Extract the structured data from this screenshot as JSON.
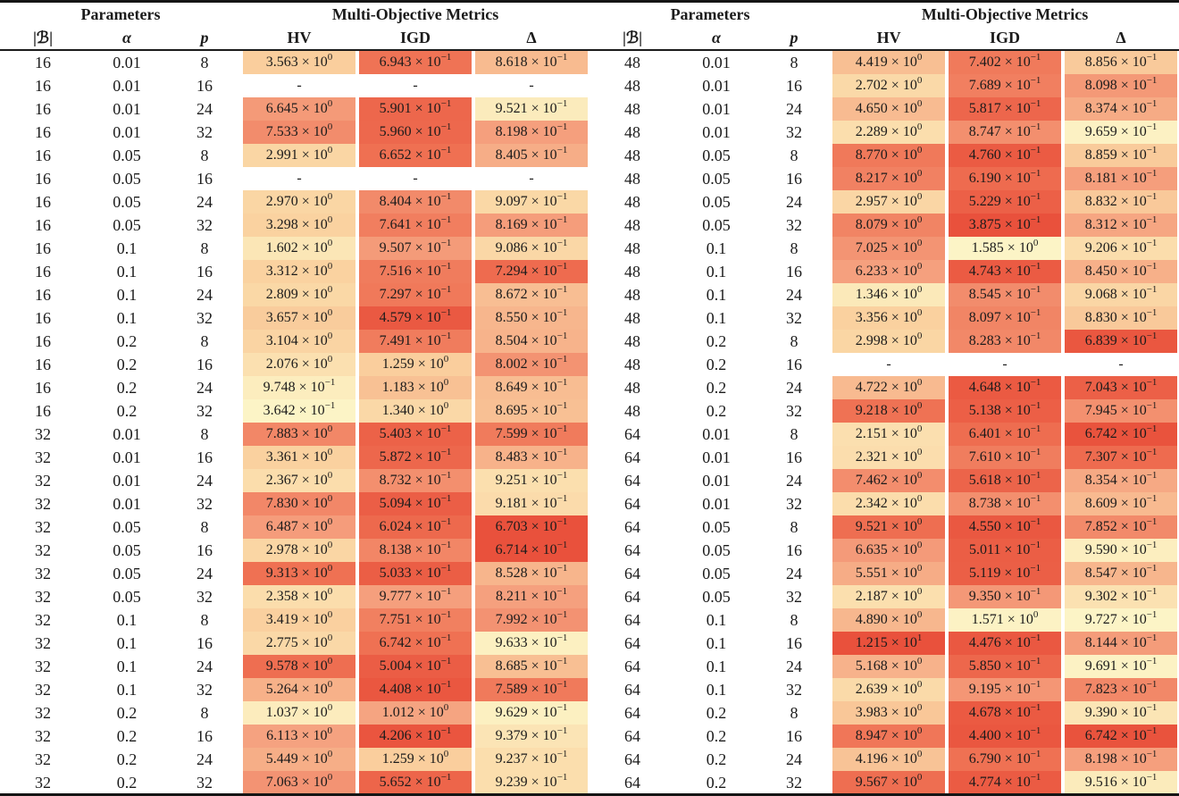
{
  "table": {
    "header": {
      "parameters_label": "Parameters",
      "metrics_label": "Multi-Objective Metrics",
      "columns": [
        "|ℬ|",
        "α",
        "p",
        "HV",
        "IGD",
        "Δ"
      ]
    },
    "missing_symbol": "-",
    "halves": [
      {
        "rows": [
          [
            16,
            0.01,
            8,
            3.563,
            0.6943,
            0.8618
          ],
          [
            16,
            0.01,
            16,
            null,
            null,
            null
          ],
          [
            16,
            0.01,
            24,
            6.645,
            0.5901,
            0.9521
          ],
          [
            16,
            0.01,
            32,
            7.533,
            0.596,
            0.8198
          ],
          [
            16,
            0.05,
            8,
            2.991,
            0.6652,
            0.8405
          ],
          [
            16,
            0.05,
            16,
            null,
            null,
            null
          ],
          [
            16,
            0.05,
            24,
            2.97,
            0.8404,
            0.9097
          ],
          [
            16,
            0.05,
            32,
            3.298,
            0.7641,
            0.8169
          ],
          [
            16,
            0.1,
            8,
            1.602,
            0.9507,
            0.9086
          ],
          [
            16,
            0.1,
            16,
            3.312,
            0.7516,
            0.7294
          ],
          [
            16,
            0.1,
            24,
            2.809,
            0.7297,
            0.8672
          ],
          [
            16,
            0.1,
            32,
            3.657,
            0.4579,
            0.855
          ],
          [
            16,
            0.2,
            8,
            3.104,
            0.7491,
            0.8504
          ],
          [
            16,
            0.2,
            16,
            2.076,
            1.259,
            0.8002
          ],
          [
            16,
            0.2,
            24,
            0.9748,
            1.183,
            0.8649
          ],
          [
            16,
            0.2,
            32,
            0.3642,
            1.34,
            0.8695
          ],
          [
            32,
            0.01,
            8,
            7.883,
            0.5403,
            0.7599
          ],
          [
            32,
            0.01,
            16,
            3.361,
            0.5872,
            0.8483
          ],
          [
            32,
            0.01,
            24,
            2.367,
            0.8732,
            0.9251
          ],
          [
            32,
            0.01,
            32,
            7.83,
            0.5094,
            0.9181
          ],
          [
            32,
            0.05,
            8,
            6.487,
            0.6024,
            0.6703
          ],
          [
            32,
            0.05,
            16,
            2.978,
            0.8138,
            0.6714
          ],
          [
            32,
            0.05,
            24,
            9.313,
            0.5033,
            0.8528
          ],
          [
            32,
            0.05,
            32,
            2.358,
            0.9777,
            0.8211
          ],
          [
            32,
            0.1,
            8,
            3.419,
            0.7751,
            0.7992
          ],
          [
            32,
            0.1,
            16,
            2.775,
            0.6742,
            0.9633
          ],
          [
            32,
            0.1,
            24,
            9.578,
            0.5004,
            0.8685
          ],
          [
            32,
            0.1,
            32,
            5.264,
            0.4408,
            0.7589
          ],
          [
            32,
            0.2,
            8,
            1.037,
            1.012,
            0.9629
          ],
          [
            32,
            0.2,
            16,
            6.113,
            0.4206,
            0.9379
          ],
          [
            32,
            0.2,
            24,
            5.449,
            1.259,
            0.9237
          ],
          [
            32,
            0.2,
            32,
            7.063,
            0.5652,
            0.9239
          ]
        ]
      },
      {
        "rows": [
          [
            48,
            0.01,
            8,
            4.419,
            0.7402,
            0.8856
          ],
          [
            48,
            0.01,
            16,
            2.702,
            0.7689,
            0.8098
          ],
          [
            48,
            0.01,
            24,
            4.65,
            0.5817,
            0.8374
          ],
          [
            48,
            0.01,
            32,
            2.289,
            0.8747,
            0.9659
          ],
          [
            48,
            0.05,
            8,
            8.77,
            0.476,
            0.8859
          ],
          [
            48,
            0.05,
            16,
            8.217,
            0.619,
            0.8181
          ],
          [
            48,
            0.05,
            24,
            2.957,
            0.5229,
            0.8832
          ],
          [
            48,
            0.05,
            32,
            8.079,
            0.3875,
            0.8312
          ],
          [
            48,
            0.1,
            8,
            7.025,
            1.585,
            0.9206
          ],
          [
            48,
            0.1,
            16,
            6.233,
            0.4743,
            0.845
          ],
          [
            48,
            0.1,
            24,
            1.346,
            0.8545,
            0.9068
          ],
          [
            48,
            0.1,
            32,
            3.356,
            0.8097,
            0.883
          ],
          [
            48,
            0.2,
            8,
            2.998,
            0.8283,
            0.6839
          ],
          [
            48,
            0.2,
            16,
            null,
            null,
            null
          ],
          [
            48,
            0.2,
            24,
            4.722,
            0.4648,
            0.7043
          ],
          [
            48,
            0.2,
            32,
            9.218,
            0.5138,
            0.7945
          ],
          [
            64,
            0.01,
            8,
            2.151,
            0.6401,
            0.6742
          ],
          [
            64,
            0.01,
            16,
            2.321,
            0.761,
            0.7307
          ],
          [
            64,
            0.01,
            24,
            7.462,
            0.5618,
            0.8354
          ],
          [
            64,
            0.01,
            32,
            2.342,
            0.8738,
            0.8609
          ],
          [
            64,
            0.05,
            8,
            9.521,
            0.455,
            0.7852
          ],
          [
            64,
            0.05,
            16,
            6.635,
            0.5011,
            0.959
          ],
          [
            64,
            0.05,
            24,
            5.551,
            0.5119,
            0.8547
          ],
          [
            64,
            0.05,
            32,
            2.187,
            0.935,
            0.9302
          ],
          [
            64,
            0.1,
            8,
            4.89,
            1.571,
            0.9727
          ],
          [
            64,
            0.1,
            16,
            12.15,
            0.4476,
            0.8144
          ],
          [
            64,
            0.1,
            24,
            5.168,
            0.585,
            0.9691
          ],
          [
            64,
            0.1,
            32,
            2.639,
            0.9195,
            0.7823
          ],
          [
            64,
            0.2,
            8,
            3.983,
            0.4678,
            0.939
          ],
          [
            64,
            0.2,
            16,
            8.947,
            0.44,
            0.6742
          ],
          [
            64,
            0.2,
            24,
            4.196,
            0.679,
            0.8198
          ],
          [
            64,
            0.2,
            32,
            9.567,
            0.4774,
            0.9516
          ]
        ]
      }
    ]
  },
  "heatmap": {
    "stops": [
      "#FCF4C6",
      "#FAD2A0",
      "#F5A07E",
      "#EF7254",
      "#E9513C"
    ],
    "metrics": [
      {
        "key": "HV",
        "higher_is_better": true
      },
      {
        "key": "IGD",
        "higher_is_better": false
      },
      {
        "key": "Delta",
        "higher_is_better": false
      }
    ],
    "text_color": "#1b1b1b",
    "missing_background": "#ffffff"
  }
}
